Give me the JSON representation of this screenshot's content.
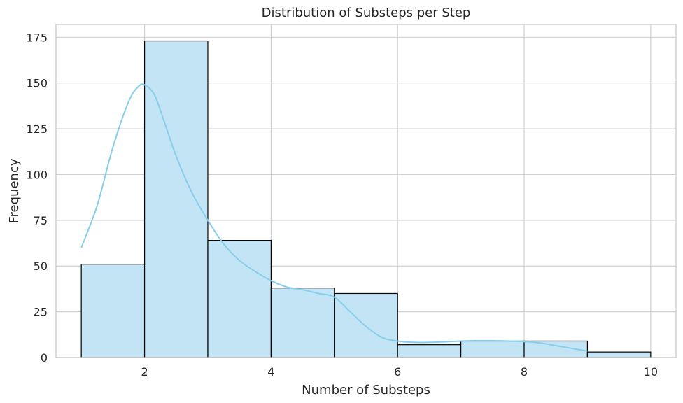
{
  "chart_data": {
    "type": "bar",
    "title": "Distribution of Substeps per Step",
    "xlabel": "Number of Substeps",
    "ylabel": "Frequency",
    "bins": [
      {
        "start": 1,
        "end": 2,
        "value": 51
      },
      {
        "start": 2,
        "end": 3,
        "value": 173
      },
      {
        "start": 3,
        "end": 4,
        "value": 64
      },
      {
        "start": 4,
        "end": 5,
        "value": 38
      },
      {
        "start": 5,
        "end": 6,
        "value": 35
      },
      {
        "start": 6,
        "end": 7,
        "value": 7
      },
      {
        "start": 7,
        "end": 8,
        "value": 9
      },
      {
        "start": 8,
        "end": 9,
        "value": 9
      },
      {
        "start": 9,
        "end": 10,
        "value": 3
      }
    ],
    "kde": {
      "x": [
        1.0,
        1.25,
        1.5,
        1.75,
        1.9,
        2.0,
        2.15,
        2.3,
        2.5,
        2.75,
        3.0,
        3.25,
        3.5,
        3.75,
        4.0,
        4.25,
        4.5,
        4.75,
        5.0,
        5.25,
        5.5,
        5.75,
        6.0,
        6.25,
        6.5,
        6.75,
        7.0,
        7.25,
        7.5,
        7.75,
        8.0,
        8.25,
        8.5,
        8.75,
        9.0
      ],
      "y": [
        60,
        83,
        115,
        140,
        148,
        149,
        144,
        130,
        110,
        90,
        75,
        62,
        53,
        47,
        42,
        38.5,
        37,
        35,
        33,
        25,
        17,
        11,
        9,
        8.3,
        8.3,
        8.6,
        9,
        9.2,
        9.2,
        9,
        8.7,
        8,
        6.5,
        5,
        3.5
      ]
    },
    "x_ticks": [
      2,
      4,
      6,
      8,
      10
    ],
    "y_ticks": [
      0,
      25,
      50,
      75,
      100,
      125,
      150,
      175
    ],
    "xlim": [
      0.6,
      10.4
    ],
    "ylim": [
      0,
      182
    ],
    "grid": true,
    "colors": {
      "bar_fill": "#c3e4f4",
      "bar_edge": "#000000",
      "kde": "#87ceeb",
      "grid": "#d0d0d0"
    }
  }
}
